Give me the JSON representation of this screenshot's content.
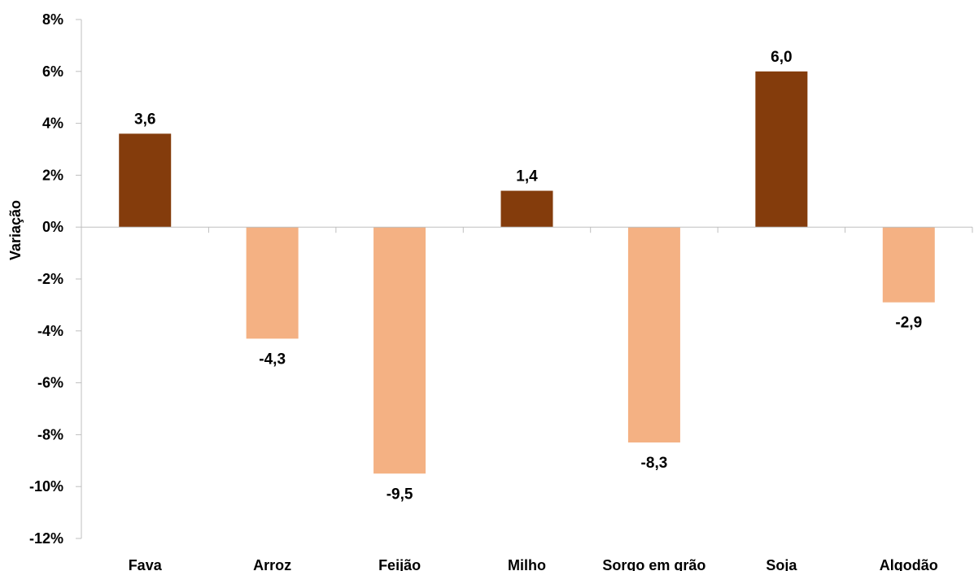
{
  "chart_data": {
    "type": "bar",
    "title": "",
    "xlabel": "",
    "ylabel": "Variação",
    "categories": [
      "Fava",
      "Arroz",
      "Feijão",
      "Milho",
      "Sorgo em grão",
      "Soja",
      "Algodão"
    ],
    "values": [
      3.6,
      -4.3,
      -9.5,
      1.4,
      -8.3,
      6.0,
      -2.9
    ],
    "data_labels": [
      "3,6",
      "-4,3",
      "-9,5",
      "1,4",
      "-8,3",
      "6,0",
      "-2,9"
    ],
    "ylim": [
      -12,
      8
    ],
    "yticks": [
      8,
      6,
      4,
      2,
      0,
      -2,
      -4,
      -6,
      -8,
      -10,
      -12
    ],
    "ytick_labels": [
      "8%",
      "6%",
      "4%",
      "2%",
      "0%",
      "-2%",
      "-4%",
      "-6%",
      "-8%",
      "-10%",
      "-12%"
    ],
    "grid": false,
    "legend": "none",
    "colors": {
      "positive": "#843C0C",
      "negative": "#F4B183",
      "axis": "#bfbfbf"
    }
  }
}
